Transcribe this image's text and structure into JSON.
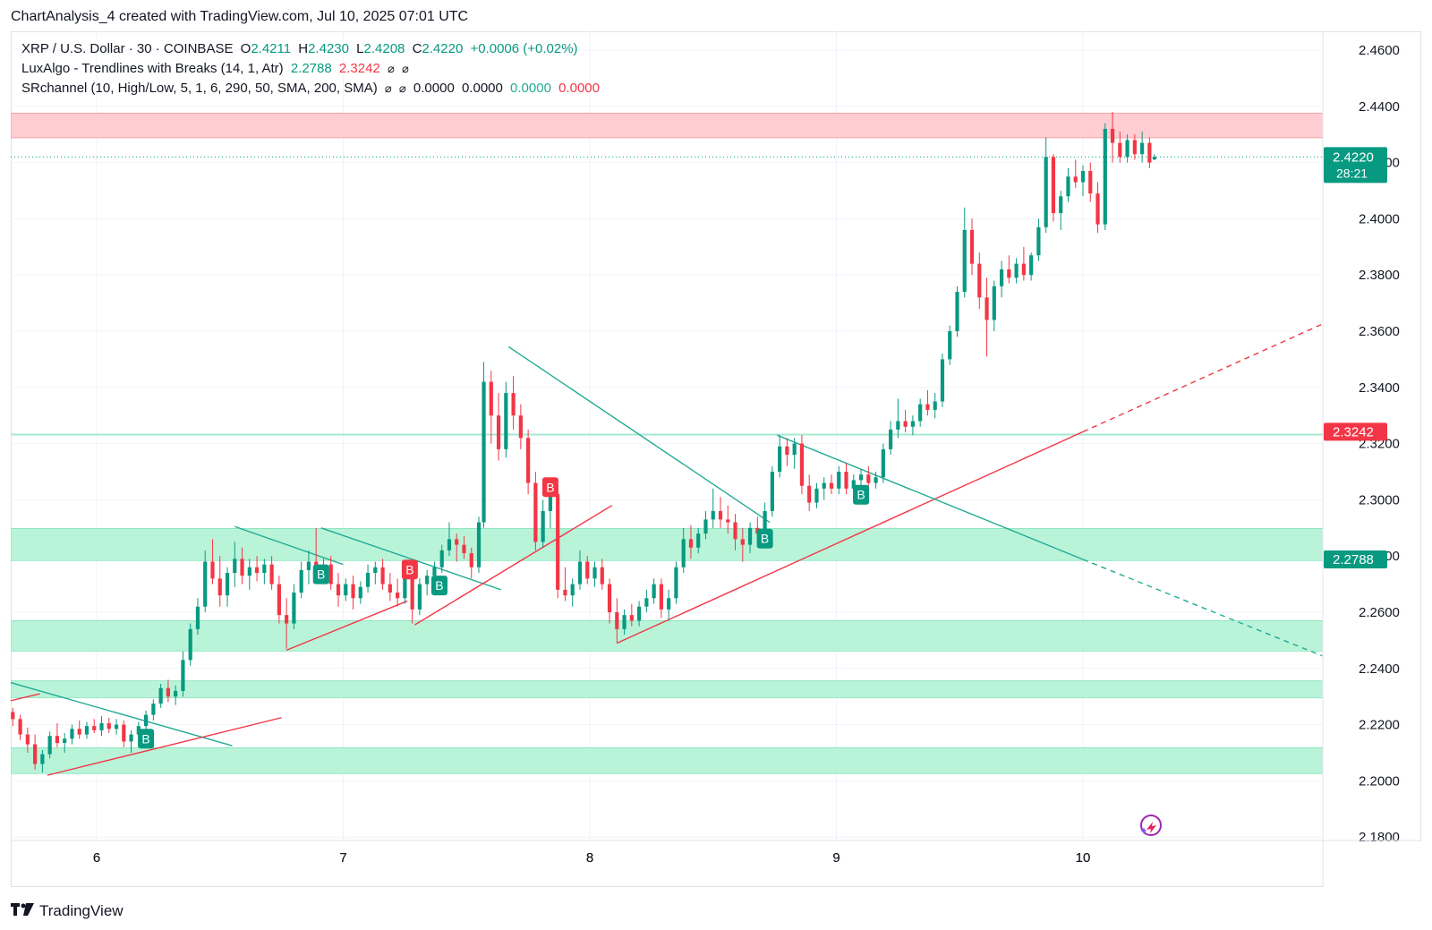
{
  "header": {
    "text": "ChartAnalysis_4 created with TradingView.com, Jul 10, 2025 07:01 UTC"
  },
  "legend": {
    "symbol_line": {
      "title": "XRP / U.S. Dollar · 30 · COINBASE",
      "o_label": "O",
      "o_value": "2.4211",
      "h_label": "H",
      "h_value": "2.4230",
      "l_label": "L",
      "l_value": "2.4208",
      "c_label": "C",
      "c_value": "2.4220",
      "change": "+0.0006 (+0.02%)"
    },
    "luxalgo": {
      "title": "LuxAlgo - Trendlines with Breaks (14, 1, Atr)",
      "value_upper": "2.2788",
      "value_lower": "2.3242",
      "icons": [
        "hidden-icon",
        "hidden-icon"
      ]
    },
    "srchannel": {
      "title": "SRchannel (10, High/Low, 5, 1, 6, 290, 50, SMA, 200, SMA)",
      "icons": [
        "hidden-icon",
        "hidden-icon"
      ],
      "v1": "0.0000",
      "v2": "0.0000",
      "v3": "0.0000",
      "v4": "0.0000"
    }
  },
  "branding": {
    "text": "TradingView"
  },
  "colors": {
    "up": "#089981",
    "down": "#f23645",
    "resistance_zone": "#ffcdd2",
    "support_zone": "#b9f4d9",
    "trend_green": "#22ab94",
    "trend_red": "#f23645"
  },
  "chart_data": {
    "type": "candlestick",
    "symbol": "XRP / U.S. Dollar",
    "interval": "30",
    "exchange": "COINBASE",
    "x_axis": {
      "ticks": [
        "6",
        "7",
        "8",
        "9",
        "10"
      ],
      "range_days": [
        5.65,
        11.0
      ]
    },
    "y_axis": {
      "ticks": [
        "2.4600",
        "2.4400",
        "2.4200",
        "2.4000",
        "2.3800",
        "2.3600",
        "2.3400",
        "2.3200",
        "2.3000",
        "2.2800",
        "2.2600",
        "2.2400",
        "2.2200",
        "2.2000",
        "2.1800"
      ],
      "range": [
        2.18,
        2.466
      ]
    },
    "last_price": {
      "value": "2.4220",
      "countdown": "28:21"
    },
    "price_labels": [
      {
        "value": "2.3242",
        "color": "#f23645"
      },
      {
        "value": "2.2788",
        "color": "#089981"
      }
    ],
    "zones": [
      {
        "kind": "resistance",
        "low": 2.4288,
        "high": 2.4376
      },
      {
        "kind": "support",
        "low": 2.2784,
        "high": 2.2898
      },
      {
        "kind": "support",
        "low": 2.2462,
        "high": 2.257
      },
      {
        "kind": "support",
        "low": 2.2296,
        "high": 2.2356
      },
      {
        "kind": "support",
        "low": 2.2026,
        "high": 2.2118
      }
    ],
    "horizontal_lines": [
      {
        "value": 2.3232,
        "color": "#22ab94"
      }
    ],
    "trendlines": [
      {
        "color": "green",
        "points": [
          [
            5.65,
            2.235
          ],
          [
            6.55,
            2.2125
          ]
        ]
      },
      {
        "color": "red",
        "points": [
          [
            5.65,
            2.2285
          ],
          [
            5.77,
            2.231
          ]
        ]
      },
      {
        "color": "red",
        "points": [
          [
            5.8,
            2.202
          ],
          [
            6.75,
            2.2225
          ]
        ]
      },
      {
        "color": "green",
        "points": [
          [
            6.56,
            2.2905
          ],
          [
            7.0,
            2.277
          ]
        ]
      },
      {
        "color": "green",
        "points": [
          [
            6.91,
            2.29
          ],
          [
            7.64,
            2.268
          ]
        ]
      },
      {
        "color": "red",
        "points": [
          [
            6.77,
            2.2465
          ],
          [
            7.26,
            2.264
          ]
        ]
      },
      {
        "color": "red",
        "points": [
          [
            7.29,
            2.2555
          ],
          [
            8.09,
            2.298
          ]
        ]
      },
      {
        "color": "green",
        "points": [
          [
            7.67,
            2.3545
          ],
          [
            8.73,
            2.292
          ]
        ]
      },
      {
        "color": "red",
        "points": [
          [
            8.11,
            2.249
          ],
          [
            10.0,
            2.3242
          ]
        ]
      },
      {
        "color": "red",
        "dashed": true,
        "points": [
          [
            10.0,
            2.3242
          ],
          [
            10.97,
            2.3625
          ]
        ]
      },
      {
        "color": "green",
        "points": [
          [
            8.76,
            2.323
          ],
          [
            10.0,
            2.2788
          ]
        ]
      },
      {
        "color": "green",
        "dashed": true,
        "points": [
          [
            10.0,
            2.2788
          ],
          [
            10.97,
            2.2445
          ]
        ]
      }
    ],
    "signals": [
      {
        "label": "B",
        "type": "buy",
        "x": 6.2,
        "price": 2.215
      },
      {
        "label": "B",
        "type": "buy",
        "x": 6.91,
        "price": 2.2735
      },
      {
        "label": "B",
        "type": "buy",
        "x": 7.39,
        "price": 2.2695
      },
      {
        "label": "B",
        "type": "sell",
        "x": 7.27,
        "price": 2.2752
      },
      {
        "label": "B",
        "type": "sell",
        "x": 7.84,
        "price": 2.3045
      },
      {
        "label": "B",
        "type": "buy",
        "x": 8.71,
        "price": 2.2862
      },
      {
        "label": "B",
        "type": "buy",
        "x": 9.1,
        "price": 2.3018
      }
    ],
    "candles_ohlc_approx": [
      [
        5.66,
        2.2245,
        2.226,
        2.2195,
        2.222
      ],
      [
        5.69,
        2.222,
        2.2235,
        2.2145,
        2.2165
      ],
      [
        5.72,
        2.2165,
        2.219,
        2.21,
        2.213
      ],
      [
        5.75,
        2.213,
        2.2165,
        2.204,
        2.206
      ],
      [
        5.78,
        2.206,
        2.211,
        2.203,
        2.2095
      ],
      [
        5.81,
        2.2095,
        2.2175,
        2.208,
        2.216
      ],
      [
        5.84,
        2.216,
        2.2205,
        2.212,
        2.2135
      ],
      [
        5.87,
        2.2135,
        2.217,
        2.21,
        2.215
      ],
      [
        5.9,
        2.215,
        2.22,
        2.213,
        2.2185
      ],
      [
        5.93,
        2.2185,
        2.2215,
        2.215,
        2.2165
      ],
      [
        5.96,
        2.2165,
        2.221,
        2.215,
        2.2195
      ],
      [
        5.99,
        2.2195,
        2.222,
        2.217,
        2.218
      ],
      [
        6.02,
        2.218,
        2.223,
        2.216,
        2.2205
      ],
      [
        6.05,
        2.2205,
        2.2225,
        2.217,
        2.2185
      ],
      [
        6.08,
        2.2185,
        2.222,
        2.2165,
        2.22
      ],
      [
        6.11,
        2.22,
        2.2215,
        2.212,
        2.214
      ],
      [
        6.14,
        2.214,
        2.218,
        2.21,
        2.2165
      ],
      [
        6.17,
        2.2165,
        2.221,
        2.214,
        2.2195
      ],
      [
        6.2,
        2.2195,
        2.225,
        2.218,
        2.2235
      ],
      [
        6.23,
        2.2235,
        2.229,
        2.2215,
        2.2275
      ],
      [
        6.26,
        2.2275,
        2.2345,
        2.226,
        2.233
      ],
      [
        6.29,
        2.233,
        2.236,
        2.228,
        2.23
      ],
      [
        6.32,
        2.23,
        2.234,
        2.227,
        2.232
      ],
      [
        6.35,
        2.232,
        2.246,
        2.23,
        2.243
      ],
      [
        6.38,
        2.243,
        2.256,
        2.241,
        2.254
      ],
      [
        6.41,
        2.254,
        2.265,
        2.252,
        2.262
      ],
      [
        6.44,
        2.262,
        2.282,
        2.26,
        2.278
      ],
      [
        6.47,
        2.278,
        2.286,
        2.27,
        2.272
      ],
      [
        6.5,
        2.272,
        2.28,
        2.262,
        2.266
      ],
      [
        6.53,
        2.266,
        2.276,
        2.262,
        2.274
      ],
      [
        6.56,
        2.274,
        2.285,
        2.269,
        2.279
      ],
      [
        6.59,
        2.279,
        2.283,
        2.27,
        2.273
      ],
      [
        6.62,
        2.273,
        2.279,
        2.268,
        2.276
      ],
      [
        6.65,
        2.276,
        2.28,
        2.271,
        2.274
      ],
      [
        6.68,
        2.274,
        2.279,
        2.27,
        2.277
      ],
      [
        6.71,
        2.277,
        2.28,
        2.268,
        2.27
      ],
      [
        6.74,
        2.27,
        2.273,
        2.256,
        2.259
      ],
      [
        6.77,
        2.259,
        2.265,
        2.247,
        2.256
      ],
      [
        6.8,
        2.256,
        2.27,
        2.254,
        2.267
      ],
      [
        6.83,
        2.267,
        2.278,
        2.265,
        2.275
      ],
      [
        6.86,
        2.275,
        2.282,
        2.27,
        2.278
      ],
      [
        6.89,
        2.278,
        2.29,
        2.272,
        2.275
      ],
      [
        6.92,
        2.275,
        2.279,
        2.27,
        2.277
      ],
      [
        6.95,
        2.277,
        2.28,
        2.268,
        2.27
      ],
      [
        6.98,
        2.27,
        2.274,
        2.262,
        2.266
      ],
      [
        7.01,
        2.266,
        2.272,
        2.264,
        2.27
      ],
      [
        7.04,
        2.27,
        2.273,
        2.261,
        2.265
      ],
      [
        7.07,
        2.265,
        2.271,
        2.263,
        2.269
      ],
      [
        7.1,
        2.269,
        2.277,
        2.267,
        2.274
      ],
      [
        7.13,
        2.274,
        2.278,
        2.27,
        2.276
      ],
      [
        7.16,
        2.276,
        2.279,
        2.268,
        2.27
      ],
      [
        7.19,
        2.27,
        2.274,
        2.264,
        2.267
      ],
      [
        7.22,
        2.267,
        2.272,
        2.262,
        2.265
      ],
      [
        7.25,
        2.265,
        2.273,
        2.263,
        2.272
      ],
      [
        7.28,
        2.272,
        2.274,
        2.256,
        2.261
      ],
      [
        7.31,
        2.261,
        2.272,
        2.259,
        2.27
      ],
      [
        7.34,
        2.27,
        2.275,
        2.266,
        2.273
      ],
      [
        7.37,
        2.273,
        2.278,
        2.269,
        2.276
      ],
      [
        7.4,
        2.276,
        2.284,
        2.274,
        2.282
      ],
      [
        7.43,
        2.282,
        2.292,
        2.28,
        2.286
      ],
      [
        7.46,
        2.286,
        2.288,
        2.278,
        2.284
      ],
      [
        7.49,
        2.284,
        2.287,
        2.279,
        2.281
      ],
      [
        7.52,
        2.281,
        2.283,
        2.272,
        2.276
      ],
      [
        7.55,
        2.276,
        2.294,
        2.274,
        2.292
      ],
      [
        7.57,
        2.292,
        2.349,
        2.29,
        2.342
      ],
      [
        7.6,
        2.342,
        2.346,
        2.32,
        2.33
      ],
      [
        7.63,
        2.33,
        2.338,
        2.314,
        2.318
      ],
      [
        7.66,
        2.318,
        2.342,
        2.315,
        2.338
      ],
      [
        7.69,
        2.338,
        2.344,
        2.325,
        2.33
      ],
      [
        7.72,
        2.33,
        2.334,
        2.318,
        2.322
      ],
      [
        7.75,
        2.322,
        2.325,
        2.302,
        2.306
      ],
      [
        7.78,
        2.306,
        2.31,
        2.282,
        2.285
      ],
      [
        7.81,
        2.285,
        2.3,
        2.283,
        2.296
      ],
      [
        7.84,
        2.296,
        2.304,
        2.29,
        2.302
      ],
      [
        7.87,
        2.302,
        2.304,
        2.265,
        2.268
      ],
      [
        7.9,
        2.268,
        2.276,
        2.264,
        2.266
      ],
      [
        7.93,
        2.266,
        2.272,
        2.262,
        2.27
      ],
      [
        7.96,
        2.27,
        2.282,
        2.268,
        2.278
      ],
      [
        7.99,
        2.278,
        2.28,
        2.27,
        2.272
      ],
      [
        8.02,
        2.272,
        2.278,
        2.269,
        2.276
      ],
      [
        8.05,
        2.276,
        2.279,
        2.268,
        2.27
      ],
      [
        8.08,
        2.27,
        2.272,
        2.256,
        2.26
      ],
      [
        8.11,
        2.26,
        2.265,
        2.249,
        2.254
      ],
      [
        8.14,
        2.254,
        2.261,
        2.252,
        2.259
      ],
      [
        8.17,
        2.259,
        2.263,
        2.255,
        2.257
      ],
      [
        8.2,
        2.257,
        2.264,
        2.255,
        2.262
      ],
      [
        8.23,
        2.262,
        2.268,
        2.26,
        2.265
      ],
      [
        8.26,
        2.265,
        2.272,
        2.263,
        2.27
      ],
      [
        8.29,
        2.27,
        2.272,
        2.258,
        2.261
      ],
      [
        8.32,
        2.261,
        2.268,
        2.257,
        2.265
      ],
      [
        8.35,
        2.265,
        2.278,
        2.263,
        2.276
      ],
      [
        8.38,
        2.276,
        2.29,
        2.274,
        2.286
      ],
      [
        8.41,
        2.286,
        2.291,
        2.279,
        2.283
      ],
      [
        8.44,
        2.283,
        2.29,
        2.281,
        2.288
      ],
      [
        8.47,
        2.288,
        2.296,
        2.286,
        2.293
      ],
      [
        8.5,
        2.293,
        2.304,
        2.29,
        2.296
      ],
      [
        8.53,
        2.296,
        2.301,
        2.29,
        2.293
      ],
      [
        8.56,
        2.293,
        2.298,
        2.288,
        2.292
      ],
      [
        8.59,
        2.292,
        2.295,
        2.282,
        2.286
      ],
      [
        8.62,
        2.286,
        2.29,
        2.278,
        2.284
      ],
      [
        8.65,
        2.284,
        2.292,
        2.281,
        2.29
      ],
      [
        8.68,
        2.29,
        2.294,
        2.286,
        2.288
      ],
      [
        8.71,
        2.288,
        2.299,
        2.286,
        2.296
      ],
      [
        8.74,
        2.296,
        2.312,
        2.294,
        2.31
      ],
      [
        8.77,
        2.31,
        2.323,
        2.308,
        2.319
      ],
      [
        8.8,
        2.319,
        2.322,
        2.312,
        2.316
      ],
      [
        8.83,
        2.316,
        2.322,
        2.311,
        2.32
      ],
      [
        8.86,
        2.32,
        2.323,
        2.302,
        2.305
      ],
      [
        8.89,
        2.305,
        2.309,
        2.296,
        2.299
      ],
      [
        8.92,
        2.299,
        2.306,
        2.297,
        2.304
      ],
      [
        8.95,
        2.304,
        2.308,
        2.3,
        2.306
      ],
      [
        8.98,
        2.306,
        2.309,
        2.302,
        2.304
      ],
      [
        9.01,
        2.304,
        2.312,
        2.302,
        2.31
      ],
      [
        9.04,
        2.31,
        2.313,
        2.302,
        2.304
      ],
      [
        9.07,
        2.304,
        2.309,
        2.3,
        2.307
      ],
      [
        9.1,
        2.307,
        2.311,
        2.302,
        2.309
      ],
      [
        9.13,
        2.309,
        2.312,
        2.304,
        2.306
      ],
      [
        9.16,
        2.306,
        2.31,
        2.304,
        2.308
      ],
      [
        9.19,
        2.308,
        2.32,
        2.306,
        2.318
      ],
      [
        9.22,
        2.318,
        2.328,
        2.316,
        2.325
      ],
      [
        9.25,
        2.325,
        2.336,
        2.322,
        2.328
      ],
      [
        9.28,
        2.328,
        2.332,
        2.324,
        2.326
      ],
      [
        9.31,
        2.326,
        2.33,
        2.323,
        2.328
      ],
      [
        9.34,
        2.328,
        2.336,
        2.326,
        2.334
      ],
      [
        9.37,
        2.334,
        2.339,
        2.33,
        2.332
      ],
      [
        9.4,
        2.332,
        2.338,
        2.329,
        2.335
      ],
      [
        9.43,
        2.335,
        2.352,
        2.333,
        2.35
      ],
      [
        9.46,
        2.35,
        2.362,
        2.348,
        2.36
      ],
      [
        9.49,
        2.36,
        2.376,
        2.358,
        2.374
      ],
      [
        9.52,
        2.374,
        2.404,
        2.372,
        2.396
      ],
      [
        9.55,
        2.396,
        2.4,
        2.38,
        2.384
      ],
      [
        9.58,
        2.384,
        2.388,
        2.368,
        2.372
      ],
      [
        9.61,
        2.372,
        2.379,
        2.351,
        2.364
      ],
      [
        9.64,
        2.364,
        2.378,
        2.36,
        2.376
      ],
      [
        9.67,
        2.376,
        2.385,
        2.372,
        2.382
      ],
      [
        9.7,
        2.382,
        2.387,
        2.377,
        2.379
      ],
      [
        9.73,
        2.379,
        2.386,
        2.377,
        2.384
      ],
      [
        9.76,
        2.384,
        2.39,
        2.378,
        2.38
      ],
      [
        9.79,
        2.38,
        2.388,
        2.378,
        2.387
      ],
      [
        9.82,
        2.387,
        2.4,
        2.385,
        2.397
      ],
      [
        9.85,
        2.397,
        2.429,
        2.395,
        2.422
      ],
      [
        9.88,
        2.422,
        2.423,
        2.399,
        2.402
      ],
      [
        9.91,
        2.402,
        2.41,
        2.396,
        2.408
      ],
      [
        9.94,
        2.408,
        2.418,
        2.406,
        2.415
      ],
      [
        9.97,
        2.415,
        2.421,
        2.411,
        2.413
      ],
      [
        10.0,
        2.413,
        2.419,
        2.408,
        2.417
      ],
      [
        10.03,
        2.417,
        2.42,
        2.406,
        2.409
      ],
      [
        10.06,
        2.409,
        2.413,
        2.395,
        2.398
      ],
      [
        10.09,
        2.398,
        2.434,
        2.396,
        2.432
      ],
      [
        10.12,
        2.432,
        2.438,
        2.42,
        2.427
      ],
      [
        10.15,
        2.427,
        2.431,
        2.42,
        2.422
      ],
      [
        10.18,
        2.422,
        2.43,
        2.42,
        2.428
      ],
      [
        10.21,
        2.428,
        2.43,
        2.421,
        2.423
      ],
      [
        10.24,
        2.423,
        2.431,
        2.42,
        2.427
      ],
      [
        10.27,
        2.427,
        2.429,
        2.418,
        2.42
      ],
      [
        10.29,
        2.4211,
        2.423,
        2.4208,
        2.422
      ]
    ]
  }
}
